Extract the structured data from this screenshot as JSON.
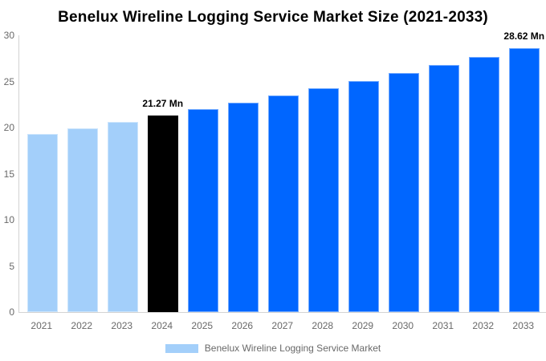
{
  "chart_data": {
    "type": "bar",
    "title": "Benelux Wireline Logging Service Market Size (2021-2033)",
    "xlabel": "",
    "ylabel": "",
    "unit": "Mn",
    "categories": [
      "2021",
      "2022",
      "2023",
      "2024",
      "2025",
      "2026",
      "2027",
      "2028",
      "2029",
      "2030",
      "2031",
      "2032",
      "2033"
    ],
    "values": [
      19.27,
      19.91,
      20.58,
      21.27,
      21.98,
      22.72,
      23.48,
      24.27,
      25.08,
      25.92,
      26.79,
      27.69,
      28.62
    ],
    "segments": [
      "historical",
      "historical",
      "historical",
      "highlight",
      "forecast",
      "forecast",
      "forecast",
      "forecast",
      "forecast",
      "forecast",
      "forecast",
      "forecast",
      "forecast"
    ],
    "bar_colors": {
      "historical": "#A3CFFA",
      "highlight": "#000000",
      "forecast": "#0066FF"
    },
    "annotations": [
      {
        "category": "2024",
        "text": "21.27 Mn"
      },
      {
        "category": "2033",
        "text": "28.62 Mn"
      }
    ],
    "ylim": [
      0,
      30
    ],
    "yticks": [
      0,
      5,
      10,
      15,
      20,
      25,
      30
    ],
    "grid": false,
    "axis_line_color": "#d3d3d3",
    "tick_text_color": "#696969",
    "legend": {
      "position": "bottom",
      "items": [
        {
          "label": "Benelux Wireline Logging Service Market",
          "color": "#A3CFFA"
        }
      ]
    }
  }
}
